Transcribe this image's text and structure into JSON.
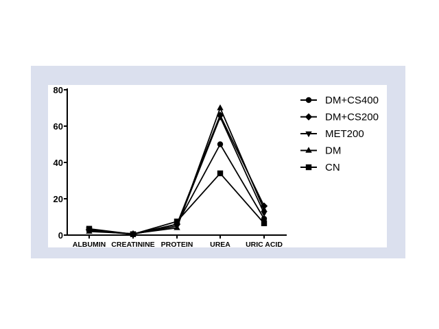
{
  "chart_data": {
    "type": "line",
    "categories": [
      "ALBUMIN",
      "CREATININE",
      "PROTEIN",
      "UREA",
      "URIC ACID"
    ],
    "series": [
      {
        "name": "DM+CS400",
        "marker": "circle",
        "values": [
          2.5,
          0.5,
          6,
          50,
          9
        ]
      },
      {
        "name": "DM+CS200",
        "marker": "diamond",
        "values": [
          3,
          0.5,
          6,
          66,
          16
        ]
      },
      {
        "name": "MET200",
        "marker": "triangle-down",
        "values": [
          3,
          0.5,
          5,
          65,
          12
        ]
      },
      {
        "name": "DM",
        "marker": "triangle-up",
        "values": [
          2,
          0.8,
          4,
          70,
          14
        ]
      },
      {
        "name": "CN",
        "marker": "square",
        "values": [
          3.5,
          0.5,
          7.5,
          34,
          6.5
        ]
      }
    ],
    "yticks": [
      0,
      20,
      40,
      60,
      80
    ],
    "ylim": [
      0,
      80
    ],
    "title": "",
    "xlabel": "",
    "ylabel": "",
    "grid": false,
    "legend_position": "right",
    "line_color": "#000000"
  }
}
